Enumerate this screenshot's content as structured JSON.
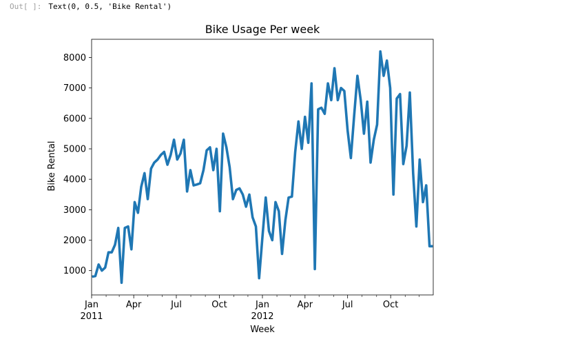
{
  "cell": {
    "prompt": "Out[ ]:",
    "output_text": "Text(0, 0.5, 'Bike Rental')"
  },
  "chart_data": {
    "type": "line",
    "title": "Bike Usage Per week",
    "xlabel": "Week",
    "ylabel": "Bike Rental",
    "line_color": "#1f77b4",
    "grid": false,
    "legend": false,
    "xlim": [
      "2011-01-01",
      "2012-12-31"
    ],
    "ylim": [
      200,
      8600
    ],
    "yticks": [
      1000,
      2000,
      3000,
      4000,
      5000,
      6000,
      7000,
      8000
    ],
    "xticks": [
      {
        "date": "2011-01-01",
        "label": "Jan",
        "sublabel": "2011"
      },
      {
        "date": "2011-04-01",
        "label": "Apr",
        "sublabel": ""
      },
      {
        "date": "2011-07-01",
        "label": "Jul",
        "sublabel": ""
      },
      {
        "date": "2011-10-01",
        "label": "Oct",
        "sublabel": ""
      },
      {
        "date": "2012-01-01",
        "label": "Jan",
        "sublabel": "2012"
      },
      {
        "date": "2012-04-01",
        "label": "Apr",
        "sublabel": ""
      },
      {
        "date": "2012-07-01",
        "label": "Jul",
        "sublabel": ""
      },
      {
        "date": "2012-10-01",
        "label": "Oct",
        "sublabel": ""
      }
    ],
    "minor_xticks": [
      "2011-02-01",
      "2011-03-01",
      "2011-05-01",
      "2011-06-01",
      "2011-08-01",
      "2011-09-01",
      "2011-11-01",
      "2011-12-01",
      "2012-02-01",
      "2012-03-01",
      "2012-05-01",
      "2012-06-01",
      "2012-08-01",
      "2012-09-01",
      "2012-11-01",
      "2012-12-01"
    ],
    "series": [
      {
        "x": [
          "2011-01-02",
          "2011-01-09",
          "2011-01-16",
          "2011-01-23",
          "2011-01-30",
          "2011-02-06",
          "2011-02-13",
          "2011-02-20",
          "2011-02-27",
          "2011-03-06",
          "2011-03-13",
          "2011-03-20",
          "2011-03-27",
          "2011-04-03",
          "2011-04-10",
          "2011-04-17",
          "2011-04-24",
          "2011-05-01",
          "2011-05-08",
          "2011-05-15",
          "2011-05-22",
          "2011-05-29",
          "2011-06-05",
          "2011-06-12",
          "2011-06-19",
          "2011-06-26",
          "2011-07-03",
          "2011-07-10",
          "2011-07-17",
          "2011-07-24",
          "2011-07-31",
          "2011-08-07",
          "2011-08-14",
          "2011-08-21",
          "2011-08-28",
          "2011-09-04",
          "2011-09-11",
          "2011-09-18",
          "2011-09-25",
          "2011-10-02",
          "2011-10-09",
          "2011-10-16",
          "2011-10-23",
          "2011-10-30",
          "2011-11-06",
          "2011-11-13",
          "2011-11-20",
          "2011-11-27",
          "2011-12-04",
          "2011-12-11",
          "2011-12-18",
          "2011-12-25",
          "2012-01-01",
          "2012-01-08",
          "2012-01-15",
          "2012-01-22",
          "2012-01-29",
          "2012-02-05",
          "2012-02-12",
          "2012-02-19",
          "2012-02-26",
          "2012-03-04",
          "2012-03-11",
          "2012-03-18",
          "2012-03-25",
          "2012-04-01",
          "2012-04-08",
          "2012-04-15",
          "2012-04-22",
          "2012-04-29",
          "2012-05-06",
          "2012-05-13",
          "2012-05-20",
          "2012-05-27",
          "2012-06-03",
          "2012-06-10",
          "2012-06-17",
          "2012-06-24",
          "2012-07-01",
          "2012-07-08",
          "2012-07-15",
          "2012-07-22",
          "2012-07-29",
          "2012-08-05",
          "2012-08-12",
          "2012-08-19",
          "2012-08-26",
          "2012-09-02",
          "2012-09-09",
          "2012-09-16",
          "2012-09-23",
          "2012-09-30",
          "2012-10-07",
          "2012-10-14",
          "2012-10-21",
          "2012-10-28",
          "2012-11-04",
          "2012-11-11",
          "2012-11-18",
          "2012-11-25",
          "2012-12-02",
          "2012-12-09",
          "2012-12-16",
          "2012-12-23",
          "2012-12-30"
        ],
        "y": [
          800,
          820,
          1200,
          1000,
          1100,
          1600,
          1600,
          1850,
          2400,
          600,
          2400,
          2450,
          1700,
          3250,
          2900,
          3750,
          4200,
          3350,
          4350,
          4550,
          4650,
          4800,
          4900,
          4480,
          4800,
          5300,
          4650,
          4850,
          5300,
          3600,
          4300,
          3800,
          3830,
          3870,
          4300,
          4950,
          5050,
          4300,
          5000,
          2950,
          5500,
          5050,
          4400,
          3350,
          3650,
          3700,
          3500,
          3100,
          3500,
          2750,
          2450,
          750,
          2100,
          3400,
          2300,
          2000,
          3250,
          2950,
          1550,
          2650,
          3400,
          3430,
          4900,
          5900,
          5000,
          6050,
          5200,
          7150,
          1050,
          6300,
          6350,
          6150,
          7150,
          6600,
          7650,
          6600,
          7000,
          6900,
          5600,
          4700,
          6100,
          7400,
          6600,
          5500,
          6550,
          4550,
          5300,
          5800,
          8200,
          7400,
          7900,
          7000,
          3500,
          6650,
          6800,
          4500,
          5100,
          6850,
          4200,
          2450,
          4650,
          3250,
          3800,
          1800,
          1800
        ]
      }
    ]
  }
}
